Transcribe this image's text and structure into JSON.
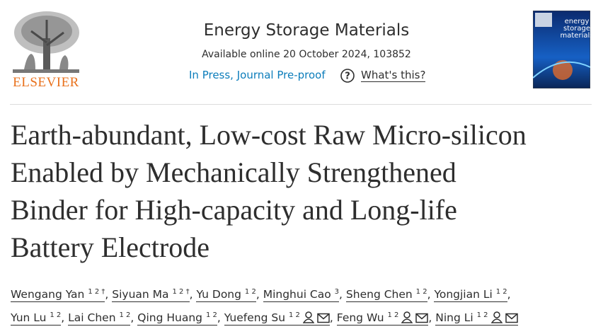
{
  "header": {
    "publisher": "ELSEVIER",
    "journal": "Energy Storage Materials",
    "available": "Available online 20 October 2024, 103852",
    "status": "In Press, Journal Pre-proof",
    "whats_this": "What's this?",
    "cover_title": [
      "energy",
      "storage",
      "materials"
    ]
  },
  "article": {
    "title_lines": [
      "Earth-abundant, Low-cost Raw Micro-silicon",
      "Enabled by Mechanically Strengthened",
      "Binder for High-capacity and Long-life",
      "Battery Electrode"
    ],
    "separator": ",",
    "authors": [
      {
        "name": "Wengang Yan",
        "sup": "1 2 †"
      },
      {
        "name": "Siyuan Ma",
        "sup": "1 2 †"
      },
      {
        "name": "Yu Dong",
        "sup": "1 2"
      },
      {
        "name": "Minghui Cao",
        "sup": "3"
      },
      {
        "name": "Sheng Chen",
        "sup": "1 2"
      },
      {
        "name": "Yongjian Li",
        "sup": "1 2"
      },
      {
        "name": "Yun Lu",
        "sup": "1 2"
      },
      {
        "name": "Lai Chen",
        "sup": "1 2"
      },
      {
        "name": "Qing Huang",
        "sup": "1 2"
      },
      {
        "name": "Yuefeng Su",
        "sup": "1 2",
        "corresponding": true
      },
      {
        "name": "Feng Wu",
        "sup": "1 2",
        "corresponding": true
      },
      {
        "name": "Ning Li",
        "sup": "1 2",
        "corresponding": true
      }
    ]
  }
}
